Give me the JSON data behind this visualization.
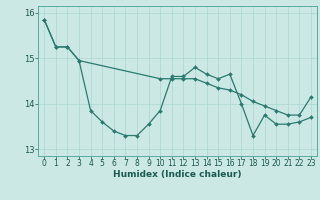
{
  "xlabel": "Humidex (Indice chaleur)",
  "background_color": "#cce8e4",
  "line_color": "#2a7a6f",
  "xlim": [
    -0.5,
    23.5
  ],
  "ylim": [
    12.85,
    16.15
  ],
  "yticks": [
    13,
    14,
    15,
    16
  ],
  "xticks": [
    0,
    1,
    2,
    3,
    4,
    5,
    6,
    7,
    8,
    9,
    10,
    11,
    12,
    13,
    14,
    15,
    16,
    17,
    18,
    19,
    20,
    21,
    22,
    23
  ],
  "series1_x": [
    0,
    1,
    2,
    3,
    4,
    5,
    6,
    7,
    8,
    9,
    10,
    11,
    12,
    13,
    14,
    15,
    16,
    17,
    18,
    19,
    20,
    21,
    22,
    23
  ],
  "series1_y": [
    15.85,
    15.25,
    15.25,
    14.95,
    13.85,
    13.6,
    13.4,
    13.3,
    13.3,
    13.55,
    13.85,
    14.6,
    14.6,
    14.8,
    14.65,
    14.55,
    14.65,
    14.0,
    13.3,
    13.75,
    13.55,
    13.55,
    13.6,
    13.7
  ],
  "series2_x": [
    0,
    1,
    2,
    3,
    10,
    11,
    12,
    13,
    14,
    15,
    16,
    17,
    18,
    19,
    20,
    21,
    22,
    23
  ],
  "series2_y": [
    15.85,
    15.25,
    15.25,
    14.95,
    14.55,
    14.55,
    14.55,
    14.55,
    14.45,
    14.35,
    14.3,
    14.2,
    14.05,
    13.95,
    13.85,
    13.75,
    13.75,
    14.15
  ]
}
